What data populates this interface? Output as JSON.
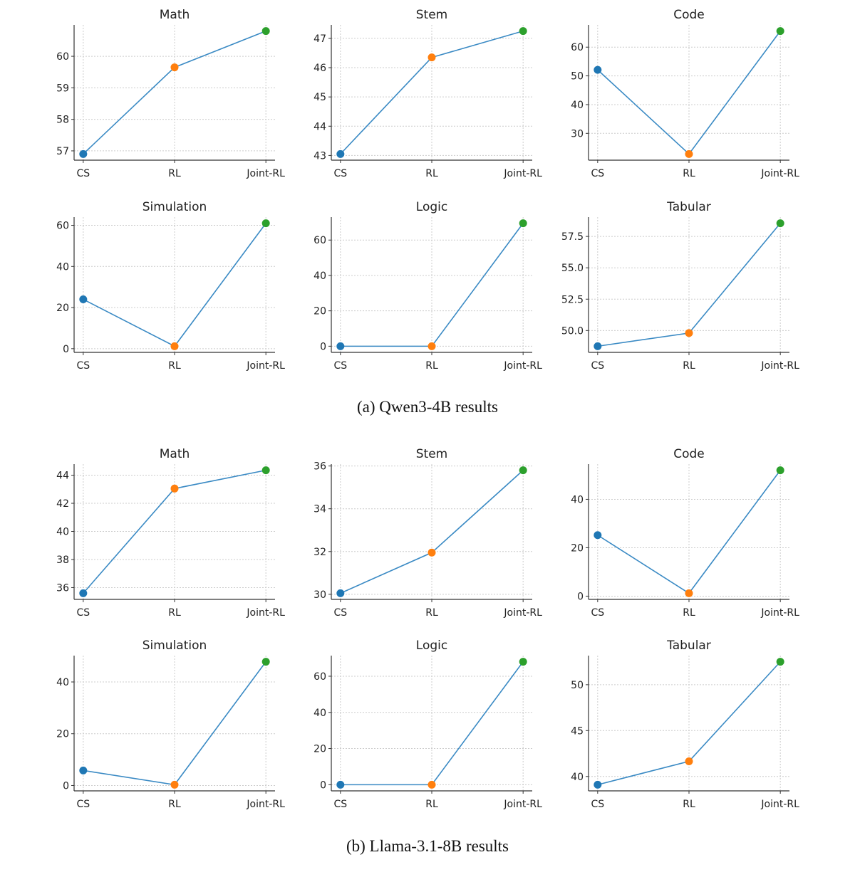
{
  "colors": {
    "line": "#3a8ac4",
    "CS": "#1f77b4",
    "RL": "#ff7f0e",
    "Joint-RL": "#2ca02c"
  },
  "captions": [
    "(a) Qwen3-4B results",
    "(b) Llama-3.1-8B results"
  ],
  "chart_data": [
    {
      "type": "line",
      "group": 0,
      "title": "Math",
      "categories": [
        "CS",
        "RL",
        "Joint-RL"
      ],
      "values": [
        56.9,
        59.65,
        60.8
      ],
      "yticks": [
        57,
        58,
        59,
        60
      ],
      "ytick_labels": [
        "57",
        "58",
        "59",
        "60"
      ],
      "grid": true
    },
    {
      "type": "line",
      "group": 0,
      "title": "Stem",
      "categories": [
        "CS",
        "RL",
        "Joint-RL"
      ],
      "values": [
        43.05,
        46.35,
        47.25
      ],
      "yticks": [
        43,
        44,
        45,
        46,
        47
      ],
      "ytick_labels": [
        "43",
        "44",
        "45",
        "46",
        "47"
      ],
      "grid": true
    },
    {
      "type": "line",
      "group": 0,
      "title": "Code",
      "categories": [
        "CS",
        "RL",
        "Joint-RL"
      ],
      "values": [
        52.1,
        22.8,
        65.6
      ],
      "yticks": [
        30,
        40,
        50,
        60
      ],
      "ytick_labels": [
        "30",
        "40",
        "50",
        "60"
      ],
      "grid": true
    },
    {
      "type": "line",
      "group": 0,
      "title": "Simulation",
      "categories": [
        "CS",
        "RL",
        "Joint-RL"
      ],
      "values": [
        24,
        1.2,
        61
      ],
      "yticks": [
        0,
        20,
        40,
        60
      ],
      "ytick_labels": [
        "0",
        "20",
        "40",
        "60"
      ],
      "grid": true
    },
    {
      "type": "line",
      "group": 0,
      "title": "Logic",
      "categories": [
        "CS",
        "RL",
        "Joint-RL"
      ],
      "values": [
        0,
        0,
        69.5
      ],
      "yticks": [
        0,
        20,
        40,
        60
      ],
      "ytick_labels": [
        "0",
        "20",
        "40",
        "60"
      ],
      "grid": true
    },
    {
      "type": "line",
      "group": 0,
      "title": "Tabular",
      "categories": [
        "CS",
        "RL",
        "Joint-RL"
      ],
      "values": [
        48.75,
        49.8,
        58.55
      ],
      "yticks": [
        50,
        52.5,
        55,
        57.5
      ],
      "ytick_labels": [
        "50.0",
        "52.5",
        "55.0",
        "57.5"
      ],
      "grid": true
    },
    {
      "type": "line",
      "group": 1,
      "title": "Math",
      "categories": [
        "CS",
        "RL",
        "Joint-RL"
      ],
      "values": [
        35.6,
        43.05,
        44.35
      ],
      "yticks": [
        36,
        38,
        40,
        42,
        44
      ],
      "ytick_labels": [
        "36",
        "38",
        "40",
        "42",
        "44"
      ],
      "grid": true
    },
    {
      "type": "line",
      "group": 1,
      "title": "Stem",
      "categories": [
        "CS",
        "RL",
        "Joint-RL"
      ],
      "values": [
        30.05,
        31.95,
        35.8
      ],
      "yticks": [
        30,
        32,
        34,
        36
      ],
      "ytick_labels": [
        "30",
        "32",
        "34",
        "36"
      ],
      "grid": true
    },
    {
      "type": "line",
      "group": 1,
      "title": "Code",
      "categories": [
        "CS",
        "RL",
        "Joint-RL"
      ],
      "values": [
        25.2,
        1.2,
        52
      ],
      "yticks": [
        0,
        20,
        40
      ],
      "ytick_labels": [
        "0",
        "20",
        "40"
      ],
      "grid": true
    },
    {
      "type": "line",
      "group": 1,
      "title": "Simulation",
      "categories": [
        "CS",
        "RL",
        "Joint-RL"
      ],
      "values": [
        5.8,
        0.3,
        47.8
      ],
      "yticks": [
        0,
        20,
        40
      ],
      "ytick_labels": [
        "0",
        "20",
        "40"
      ],
      "grid": true
    },
    {
      "type": "line",
      "group": 1,
      "title": "Logic",
      "categories": [
        "CS",
        "RL",
        "Joint-RL"
      ],
      "values": [
        0,
        0,
        68
      ],
      "yticks": [
        0,
        20,
        40,
        60
      ],
      "ytick_labels": [
        "0",
        "20",
        "40",
        "60"
      ],
      "grid": true
    },
    {
      "type": "line",
      "group": 1,
      "title": "Tabular",
      "categories": [
        "CS",
        "RL",
        "Joint-RL"
      ],
      "values": [
        39.1,
        41.65,
        52.5
      ],
      "yticks": [
        40,
        45,
        50
      ],
      "ytick_labels": [
        "40",
        "45",
        "50"
      ],
      "grid": true
    }
  ]
}
